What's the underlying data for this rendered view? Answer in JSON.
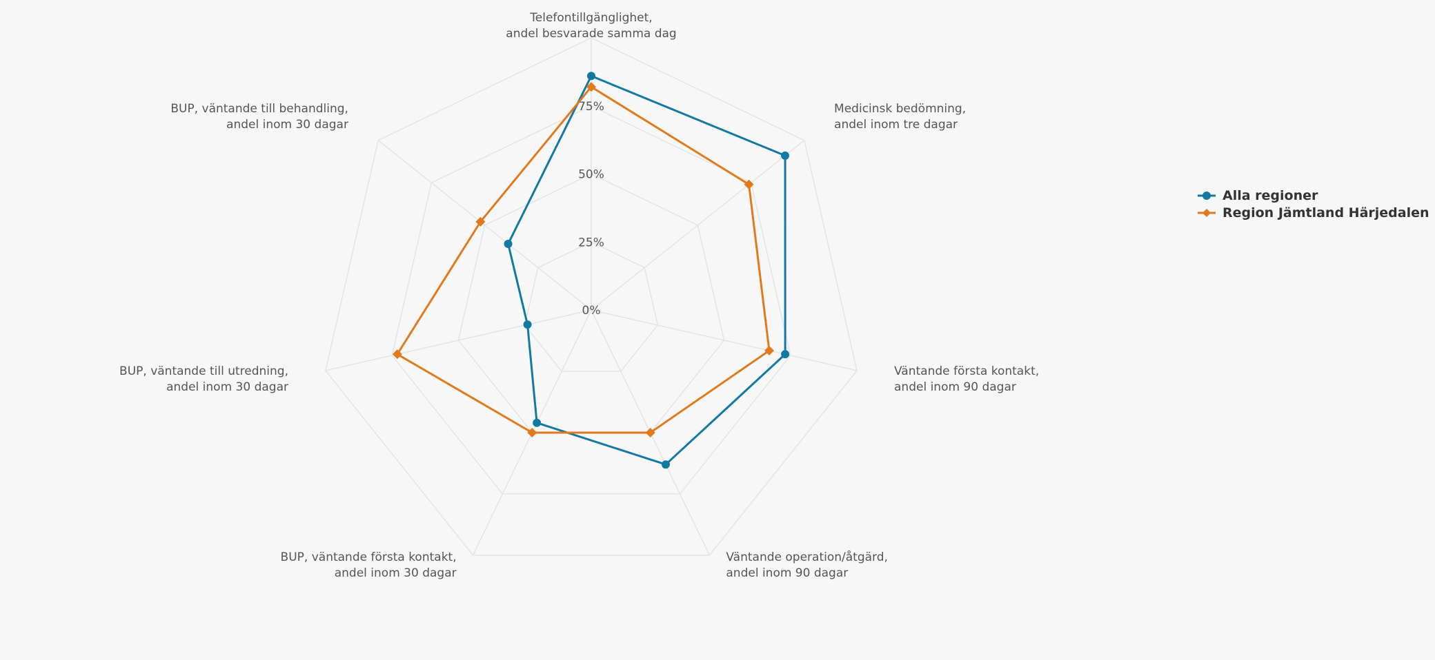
{
  "chart_data": {
    "type": "radar",
    "categories": [
      [
        "Telefontillgänglighet,",
        "andel besvarade samma dag"
      ],
      [
        "Medicinsk bedömning,",
        "andel inom tre dagar"
      ],
      [
        "Väntande första kontakt,",
        "andel inom 90 dagar"
      ],
      [
        "Väntande operation/åtgärd,",
        "andel inom 90 dagar"
      ],
      [
        "BUP, väntande första kontakt,",
        "andel inom 30 dagar"
      ],
      [
        "BUP, väntande till utredning,",
        "andel inom 30 dagar"
      ],
      [
        "BUP, väntande till behandling,",
        "andel inom 30 dagar"
      ]
    ],
    "series": [
      {
        "name": "Alla regioner",
        "color": "#1379a3",
        "marker": "circle",
        "values": [
          86,
          91,
          73,
          63,
          46,
          24,
          39
        ]
      },
      {
        "name": "Region Jämtland Härjedalen",
        "color": "#e07a1c",
        "marker": "diamond",
        "values": [
          82,
          74,
          67,
          50,
          50,
          73,
          52
        ]
      }
    ],
    "ylim": [
      0,
      100
    ],
    "yticks": [
      {
        "value": 0,
        "label": "0%"
      },
      {
        "value": 25,
        "label": "25%"
      },
      {
        "value": 50,
        "label": "50%"
      },
      {
        "value": 75,
        "label": "75%"
      },
      {
        "value": 100,
        "label": ""
      }
    ],
    "grid": true,
    "legend": "right"
  }
}
